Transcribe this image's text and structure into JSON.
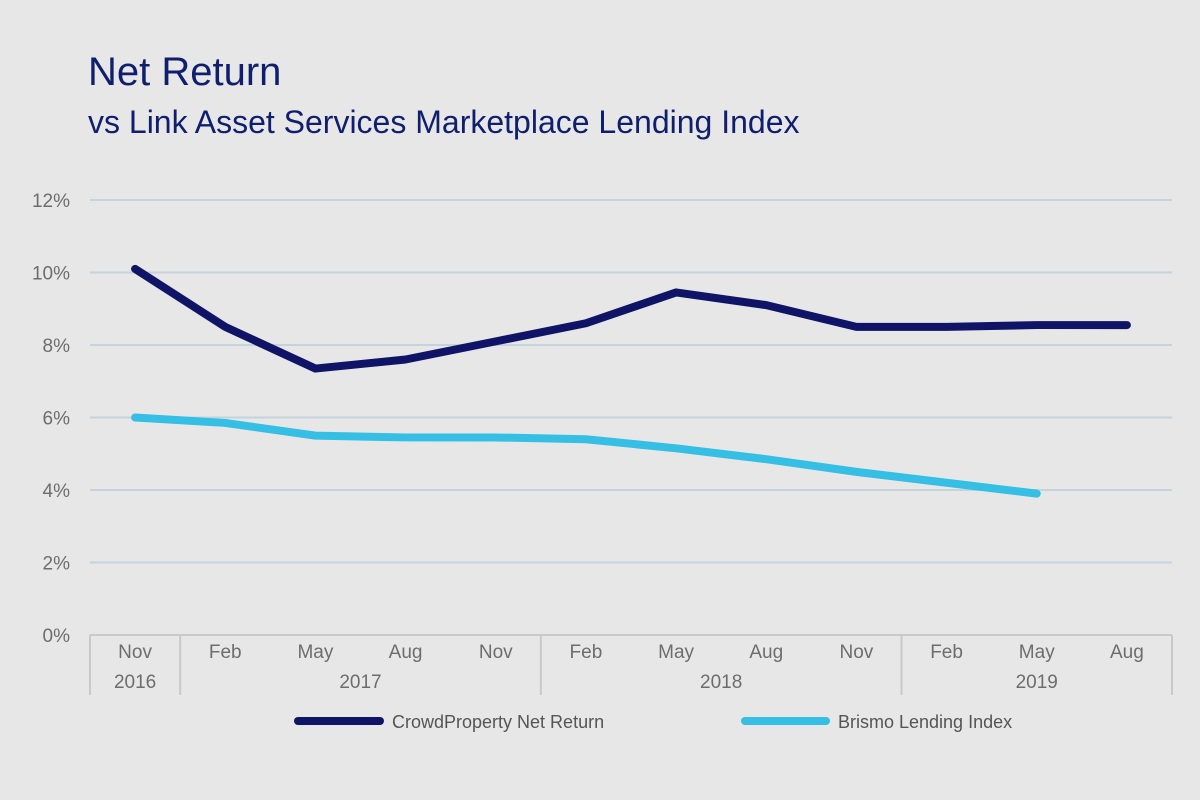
{
  "header": {
    "title": "Net Return",
    "subtitle": "vs Link Asset Services Marketplace Lending Index"
  },
  "chart_data": {
    "type": "line",
    "title": "Net Return",
    "subtitle": "vs Link Asset Services Marketplace Lending Index",
    "categories": [
      "Nov",
      "Feb",
      "May",
      "Aug",
      "Nov",
      "Feb",
      "May",
      "Aug",
      "Nov",
      "Feb",
      "May",
      "Aug"
    ],
    "year_groups": [
      {
        "label": "2016",
        "start": 0,
        "end": 0
      },
      {
        "label": "2017",
        "start": 1,
        "end": 4
      },
      {
        "label": "2018",
        "start": 5,
        "end": 8
      },
      {
        "label": "2019",
        "start": 9,
        "end": 11
      }
    ],
    "y_ticks": [
      "0%",
      "2%",
      "4%",
      "6%",
      "8%",
      "10%",
      "12%"
    ],
    "ylim": [
      0,
      12
    ],
    "grid": true,
    "legend_position": "bottom",
    "series": [
      {
        "name": "CrowdProperty Net Return",
        "color": "#0f1466",
        "values": [
          10.1,
          8.5,
          7.35,
          7.6,
          8.1,
          8.6,
          9.45,
          9.1,
          8.5,
          8.5,
          8.55,
          8.55
        ]
      },
      {
        "name": "Brismo Lending Index",
        "color": "#35bfe4",
        "values": [
          6.0,
          5.85,
          5.5,
          5.45,
          5.45,
          5.4,
          5.15,
          4.85,
          4.5,
          4.2,
          3.9,
          null
        ]
      }
    ]
  }
}
